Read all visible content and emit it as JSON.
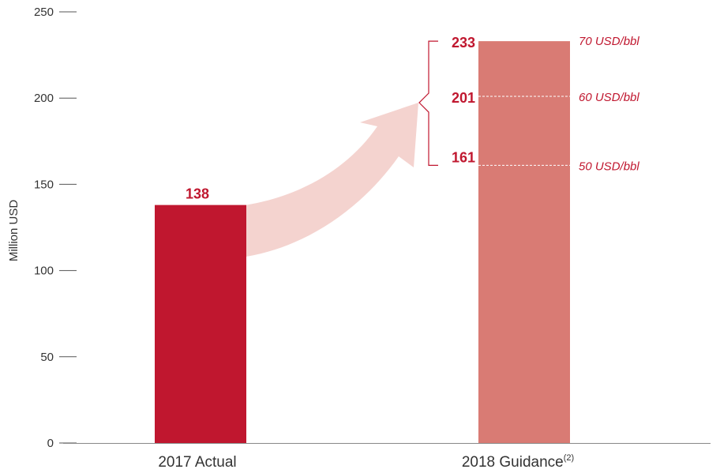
{
  "chart_data": {
    "type": "bar",
    "ylabel": "Million USD",
    "ylim": [
      0,
      250
    ],
    "yticks": [
      0,
      50,
      100,
      150,
      200,
      250
    ],
    "categories": [
      {
        "label": "2017 Actual",
        "superscript": ""
      },
      {
        "label": "2018 Guidance",
        "superscript": "(2)"
      }
    ],
    "values": [
      138,
      233
    ],
    "value_labels": [
      "138",
      ""
    ],
    "colors": [
      "#c0172f",
      "#d97b74"
    ],
    "guidance_range": [
      {
        "value": 233,
        "label": "233",
        "scenario": "70 USD/bbl"
      },
      {
        "value": 201,
        "label": "201",
        "scenario": "60 USD/bbl"
      },
      {
        "value": 161,
        "label": "161",
        "scenario": "50 USD/bbl"
      }
    ],
    "arrow_color": "#f4d3cf",
    "grid": false
  }
}
